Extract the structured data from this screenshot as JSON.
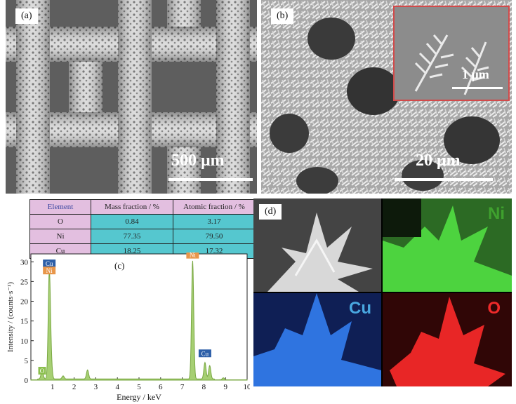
{
  "panel_a": {
    "tag": "(a)",
    "scale_label": "500 μm"
  },
  "panel_b": {
    "tag": "(b)",
    "scale_label": "20 μm",
    "inset_scale_label": "1 μm"
  },
  "panel_c": {
    "tag": "(c)"
  },
  "panel_d": {
    "tag": "(d)",
    "maps": [
      "Ni",
      "Cu",
      "O"
    ]
  },
  "table": {
    "headers": [
      "Element",
      "Mass fraction / %",
      "Atomic fraction / %"
    ],
    "rows": [
      {
        "element": "O",
        "mass": "0.84",
        "atomic": "3.17"
      },
      {
        "element": "Ni",
        "mass": "77.35",
        "atomic": "79.50"
      },
      {
        "element": "Cu",
        "mass": "18.25",
        "atomic": "17.32"
      }
    ]
  },
  "colors": {
    "spectrum": "#8bbf4e",
    "ni_map": "#44d23a",
    "cu_map": "#2f74e0",
    "o_map": "#ee2a2a",
    "table_header": "#e3bfe0",
    "table_value": "#55c7cf"
  },
  "chart_data": {
    "type": "line",
    "xlabel": "Energy / keV",
    "ylabel": "Intensity / (counts·s⁻¹)",
    "xlim": [
      0,
      10
    ],
    "ylim": [
      0,
      32
    ],
    "x_ticks": [
      1,
      2,
      3,
      4,
      5,
      6,
      7,
      8,
      9,
      10
    ],
    "y_ticks": [
      0,
      5,
      10,
      15,
      20,
      25,
      30
    ],
    "peaks": [
      {
        "x": 0.52,
        "y": 2.2
      },
      {
        "x": 0.85,
        "y": 26.5
      },
      {
        "x": 0.93,
        "y": 4.5
      },
      {
        "x": 1.49,
        "y": 0.8
      },
      {
        "x": 2.62,
        "y": 2.3
      },
      {
        "x": 7.48,
        "y": 30.0
      },
      {
        "x": 8.05,
        "y": 4.2
      },
      {
        "x": 8.27,
        "y": 3.4
      },
      {
        "x": 8.9,
        "y": 0.5
      }
    ],
    "peak_labels": [
      {
        "text": "Cu",
        "x": 0.85,
        "y": 28.8,
        "color": "#2d5fa8"
      },
      {
        "text": "Ni",
        "x": 0.85,
        "y": 27.0,
        "color": "#e8964a"
      },
      {
        "text": "Ni",
        "x": 7.48,
        "y": 31.0,
        "color": "#e8964a"
      },
      {
        "text": "Cu",
        "x": 8.05,
        "y": 6.0,
        "color": "#2d5fa8"
      },
      {
        "text": "O",
        "x": 0.52,
        "y": 1.6,
        "color": "#8bbf4e"
      }
    ]
  }
}
